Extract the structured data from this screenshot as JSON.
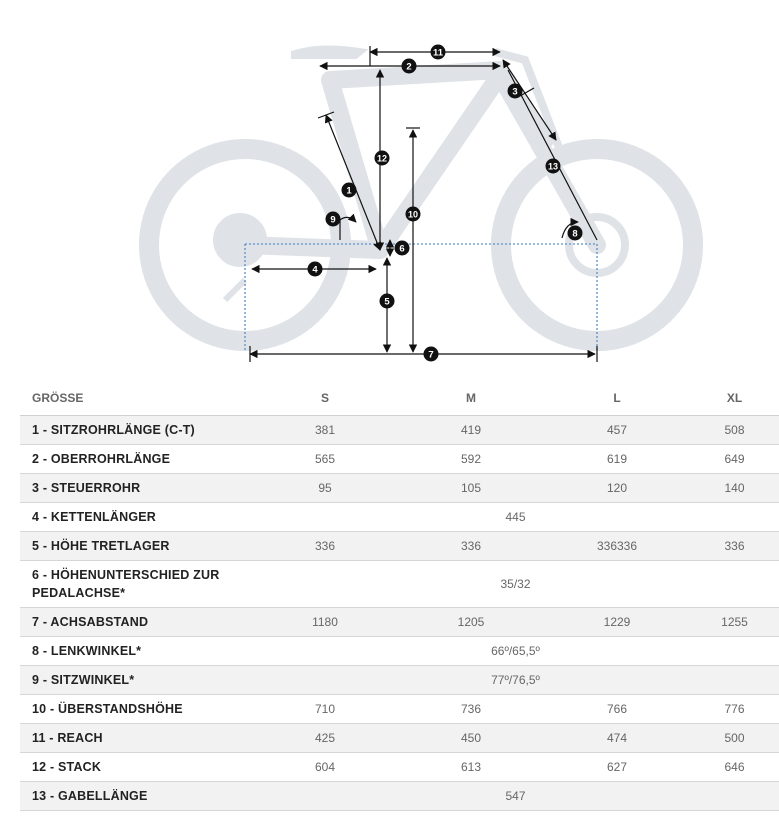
{
  "diagram": {
    "markers": [
      "1",
      "2",
      "3",
      "4",
      "5",
      "6",
      "7",
      "8",
      "9",
      "10",
      "11",
      "12",
      "13"
    ]
  },
  "table": {
    "header": {
      "label": "GRÖSSE",
      "sizes": [
        "S",
        "M",
        "L",
        "XL"
      ]
    },
    "rows": [
      {
        "label": "1 - SITZROHRLÄNGE (C-T)",
        "values": [
          "381",
          "419",
          "457",
          "508"
        ]
      },
      {
        "label": "2 - OBERROHRLÄNGE",
        "values": [
          "565",
          "592",
          "619",
          "649"
        ]
      },
      {
        "label": "3 - STEUERROHR",
        "values": [
          "95",
          "105",
          "120",
          "140"
        ]
      },
      {
        "label": "4 - KETTENLÄNGER",
        "value_all": "445"
      },
      {
        "label": "5 - HÖHE TRETLAGER",
        "values": [
          "336",
          "336",
          "336336",
          "336"
        ]
      },
      {
        "label": "6 - HÖHENUNTERSCHIED ZUR PEDALACHSE*",
        "value_all": "35/32"
      },
      {
        "label": "7 - ACHSABSTAND",
        "values": [
          "1180",
          "1205",
          "1229",
          "1255"
        ]
      },
      {
        "label": "8 - LENKWINKEL*",
        "value_all": "66º/65,5º"
      },
      {
        "label": "9 - SITZWINKEL*",
        "value_all": "77º/76,5º"
      },
      {
        "label": "10 - ÜBERSTANDSHÖHE",
        "values": [
          "710",
          "736",
          "766",
          "776"
        ]
      },
      {
        "label": "11 - REACH",
        "values": [
          "425",
          "450",
          "474",
          "500"
        ]
      },
      {
        "label": "12 - STACK",
        "values": [
          "604",
          "613",
          "627",
          "646"
        ]
      },
      {
        "label": "13 - GABELLÄNGE",
        "value_all": "547"
      }
    ]
  }
}
